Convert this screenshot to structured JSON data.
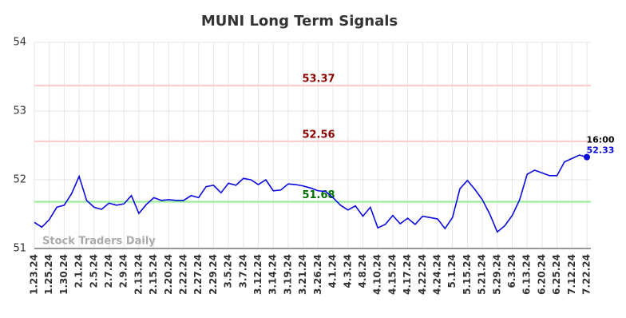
{
  "chart_data": {
    "type": "line",
    "title": "MUNI Long Term Signals",
    "categories": [
      "1.23.24",
      null,
      "1.25.24",
      null,
      "1.30.24",
      null,
      "2.1.24",
      null,
      "2.5.24",
      null,
      "2.7.24",
      null,
      "2.9.24",
      null,
      "2.13.24",
      null,
      "2.15.24",
      null,
      "2.20.24",
      null,
      "2.22.24",
      null,
      "2.27.24",
      null,
      "2.29.24",
      null,
      "3.5.24",
      null,
      "3.7.24",
      null,
      "3.12.24",
      null,
      "3.14.24",
      null,
      "3.19.24",
      null,
      "3.21.24",
      null,
      "3.26.24",
      null,
      "4.1.24",
      null,
      "4.3.24",
      null,
      "4.8.24",
      null,
      "4.10.24",
      null,
      "4.15.24",
      null,
      "4.17.24",
      null,
      "4.22.24",
      null,
      "4.24.24",
      null,
      "5.1.24",
      null,
      "5.15.24",
      null,
      "5.21.24",
      null,
      "5.29.24",
      null,
      "6.3.24",
      null,
      "6.13.24",
      null,
      "6.20.24",
      null,
      "6.25.24",
      null,
      "7.12.24",
      null,
      "7.22.24"
    ],
    "series": [
      {
        "name": "MUNI",
        "color": "#0a0ae0",
        "values": [
          51.38,
          51.31,
          51.42,
          51.6,
          51.63,
          51.8,
          52.05,
          51.7,
          51.6,
          51.57,
          51.66,
          51.63,
          51.65,
          51.77,
          51.51,
          51.64,
          51.74,
          51.7,
          51.71,
          51.7,
          51.7,
          51.77,
          51.74,
          51.9,
          51.92,
          51.81,
          51.95,
          51.92,
          52.02,
          52.0,
          51.93,
          52.0,
          51.84,
          51.85,
          51.94,
          51.93,
          51.91,
          51.88,
          51.84,
          51.83,
          51.74,
          51.63,
          51.56,
          51.62,
          51.47,
          51.6,
          51.3,
          51.35,
          51.48,
          51.36,
          51.44,
          51.35,
          51.47,
          51.45,
          51.43,
          51.29,
          51.45,
          51.87,
          51.99,
          51.86,
          51.71,
          51.5,
          51.24,
          51.33,
          51.48,
          51.71,
          52.08,
          52.14,
          52.1,
          52.06,
          52.06,
          52.26,
          52.31,
          52.36,
          52.33
        ]
      }
    ],
    "hlines": [
      {
        "value": 53.37,
        "color": "#ffc8c8",
        "label_color": "#8b0000"
      },
      {
        "value": 52.56,
        "color": "#ffc8c8",
        "label_color": "#8b0000"
      },
      {
        "value": 51.68,
        "color": "#90ee90",
        "label_color": "#007000"
      }
    ],
    "last_label": "16:00",
    "watermark": "Stock Traders Daily",
    "ylim": [
      51,
      54
    ],
    "yticks": [
      51,
      52,
      53,
      54
    ],
    "grid": true
  }
}
